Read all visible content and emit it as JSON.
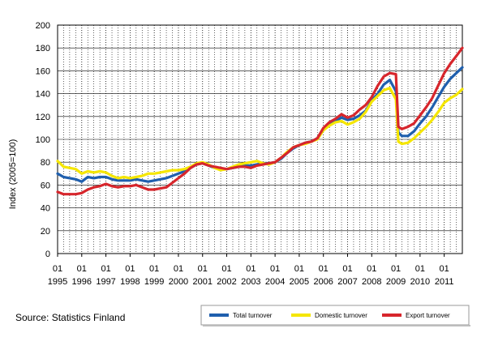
{
  "source_text": "Source: Statistics Finland",
  "chart_data": {
    "type": "line",
    "title": "",
    "ylabel": "Index (2005=100)",
    "xlabel": "",
    "ylim": [
      0,
      200
    ],
    "yticks": [
      0,
      20,
      40,
      60,
      80,
      100,
      120,
      140,
      160,
      180,
      200
    ],
    "xlim": [
      1995.0,
      2011.75
    ],
    "xtick_years": [
      "1995",
      "1996",
      "1997",
      "1998",
      "1999",
      "2000",
      "2001",
      "2002",
      "2003",
      "2004",
      "2005",
      "2006",
      "2007",
      "2008",
      "2009",
      "2010",
      "2011"
    ],
    "xtick_month": "01",
    "grid": true,
    "legend_position": "bottom-right",
    "series": [
      {
        "name": "Total turnover",
        "color": "#1f5fae",
        "points": [
          [
            1995.0,
            70
          ],
          [
            1995.25,
            67
          ],
          [
            1995.5,
            66
          ],
          [
            1995.75,
            65
          ],
          [
            1996.0,
            63
          ],
          [
            1996.25,
            67
          ],
          [
            1996.5,
            66
          ],
          [
            1996.75,
            67
          ],
          [
            1997.0,
            67
          ],
          [
            1997.25,
            65
          ],
          [
            1997.5,
            64
          ],
          [
            1997.75,
            64
          ],
          [
            1998.0,
            64
          ],
          [
            1998.25,
            65
          ],
          [
            1998.5,
            64
          ],
          [
            1998.75,
            63
          ],
          [
            1999.0,
            64
          ],
          [
            1999.25,
            65
          ],
          [
            1999.5,
            66
          ],
          [
            1999.75,
            68
          ],
          [
            2000.0,
            70
          ],
          [
            2000.25,
            72
          ],
          [
            2000.5,
            75
          ],
          [
            2000.75,
            78
          ],
          [
            2001.0,
            79
          ],
          [
            2001.25,
            77
          ],
          [
            2001.5,
            75
          ],
          [
            2001.75,
            74
          ],
          [
            2002.0,
            74
          ],
          [
            2002.25,
            75
          ],
          [
            2002.5,
            76
          ],
          [
            2002.75,
            77
          ],
          [
            2003.0,
            77
          ],
          [
            2003.25,
            78
          ],
          [
            2003.5,
            79
          ],
          [
            2003.75,
            79
          ],
          [
            2004.0,
            80
          ],
          [
            2004.25,
            83
          ],
          [
            2004.5,
            88
          ],
          [
            2004.75,
            92
          ],
          [
            2005.0,
            95
          ],
          [
            2005.25,
            97
          ],
          [
            2005.5,
            98
          ],
          [
            2005.75,
            101
          ],
          [
            2006.0,
            108
          ],
          [
            2006.25,
            113
          ],
          [
            2006.5,
            116
          ],
          [
            2006.75,
            119
          ],
          [
            2007.0,
            117
          ],
          [
            2007.25,
            118
          ],
          [
            2007.5,
            121
          ],
          [
            2007.75,
            125
          ],
          [
            2008.0,
            134
          ],
          [
            2008.25,
            140
          ],
          [
            2008.5,
            148
          ],
          [
            2008.75,
            152
          ],
          [
            2009.0,
            142
          ],
          [
            2009.1,
            106
          ],
          [
            2009.25,
            103
          ],
          [
            2009.5,
            103
          ],
          [
            2009.75,
            107
          ],
          [
            2010.0,
            114
          ],
          [
            2010.25,
            120
          ],
          [
            2010.5,
            128
          ],
          [
            2010.75,
            137
          ],
          [
            2011.0,
            146
          ],
          [
            2011.25,
            153
          ],
          [
            2011.5,
            158
          ],
          [
            2011.75,
            163
          ]
        ]
      },
      {
        "name": "Domestic turnover",
        "color": "#f5e600",
        "points": [
          [
            1995.0,
            81
          ],
          [
            1995.25,
            76
          ],
          [
            1995.5,
            75
          ],
          [
            1995.75,
            74
          ],
          [
            1996.0,
            70
          ],
          [
            1996.25,
            72
          ],
          [
            1996.5,
            71
          ],
          [
            1996.75,
            72
          ],
          [
            1997.0,
            71
          ],
          [
            1997.25,
            68
          ],
          [
            1997.5,
            66
          ],
          [
            1997.75,
            67
          ],
          [
            1998.0,
            66
          ],
          [
            1998.25,
            67
          ],
          [
            1998.5,
            68
          ],
          [
            1998.75,
            70
          ],
          [
            1999.0,
            70
          ],
          [
            1999.25,
            71
          ],
          [
            1999.5,
            72
          ],
          [
            1999.75,
            73
          ],
          [
            2000.0,
            73
          ],
          [
            2000.25,
            74
          ],
          [
            2000.5,
            76
          ],
          [
            2000.75,
            79
          ],
          [
            2001.0,
            80
          ],
          [
            2001.25,
            78
          ],
          [
            2001.5,
            75
          ],
          [
            2001.75,
            73
          ],
          [
            2002.0,
            74
          ],
          [
            2002.25,
            76
          ],
          [
            2002.5,
            78
          ],
          [
            2002.75,
            79
          ],
          [
            2003.0,
            80
          ],
          [
            2003.25,
            81
          ],
          [
            2003.5,
            79
          ],
          [
            2003.75,
            78
          ],
          [
            2004.0,
            80
          ],
          [
            2004.25,
            84
          ],
          [
            2004.5,
            89
          ],
          [
            2004.75,
            93
          ],
          [
            2005.0,
            95
          ],
          [
            2005.25,
            96
          ],
          [
            2005.5,
            98
          ],
          [
            2005.75,
            100
          ],
          [
            2006.0,
            108
          ],
          [
            2006.25,
            112
          ],
          [
            2006.5,
            115
          ],
          [
            2006.75,
            116
          ],
          [
            2007.0,
            113
          ],
          [
            2007.25,
            115
          ],
          [
            2007.5,
            118
          ],
          [
            2007.75,
            124
          ],
          [
            2008.0,
            133
          ],
          [
            2008.25,
            138
          ],
          [
            2008.5,
            143
          ],
          [
            2008.75,
            145
          ],
          [
            2009.0,
            135
          ],
          [
            2009.1,
            98
          ],
          [
            2009.25,
            96
          ],
          [
            2009.5,
            97
          ],
          [
            2009.75,
            101
          ],
          [
            2010.0,
            106
          ],
          [
            2010.25,
            111
          ],
          [
            2010.5,
            117
          ],
          [
            2010.75,
            124
          ],
          [
            2011.0,
            132
          ],
          [
            2011.25,
            136
          ],
          [
            2011.5,
            139
          ],
          [
            2011.75,
            144
          ]
        ]
      },
      {
        "name": "Export turnover",
        "color": "#d7262c",
        "points": [
          [
            1995.0,
            54
          ],
          [
            1995.25,
            52
          ],
          [
            1995.5,
            52
          ],
          [
            1995.75,
            52
          ],
          [
            1996.0,
            53
          ],
          [
            1996.25,
            56
          ],
          [
            1996.5,
            58
          ],
          [
            1996.75,
            59
          ],
          [
            1997.0,
            61
          ],
          [
            1997.25,
            59
          ],
          [
            1997.5,
            58
          ],
          [
            1997.75,
            59
          ],
          [
            1998.0,
            59
          ],
          [
            1998.25,
            60
          ],
          [
            1998.5,
            58
          ],
          [
            1998.75,
            56
          ],
          [
            1999.0,
            56
          ],
          [
            1999.25,
            57
          ],
          [
            1999.5,
            58
          ],
          [
            1999.75,
            62
          ],
          [
            2000.0,
            66
          ],
          [
            2000.25,
            70
          ],
          [
            2000.5,
            75
          ],
          [
            2000.75,
            78
          ],
          [
            2001.0,
            79
          ],
          [
            2001.25,
            77
          ],
          [
            2001.5,
            76
          ],
          [
            2001.75,
            75
          ],
          [
            2002.0,
            74
          ],
          [
            2002.25,
            75
          ],
          [
            2002.5,
            76
          ],
          [
            2002.75,
            76
          ],
          [
            2003.0,
            75
          ],
          [
            2003.25,
            77
          ],
          [
            2003.5,
            78
          ],
          [
            2003.75,
            79
          ],
          [
            2004.0,
            80
          ],
          [
            2004.25,
            84
          ],
          [
            2004.5,
            88
          ],
          [
            2004.75,
            93
          ],
          [
            2005.0,
            95
          ],
          [
            2005.25,
            97
          ],
          [
            2005.5,
            98
          ],
          [
            2005.75,
            101
          ],
          [
            2006.0,
            110
          ],
          [
            2006.25,
            115
          ],
          [
            2006.5,
            118
          ],
          [
            2006.75,
            122
          ],
          [
            2007.0,
            119
          ],
          [
            2007.25,
            121
          ],
          [
            2007.5,
            126
          ],
          [
            2007.75,
            130
          ],
          [
            2008.0,
            137
          ],
          [
            2008.25,
            147
          ],
          [
            2008.5,
            155
          ],
          [
            2008.75,
            158
          ],
          [
            2009.0,
            157
          ],
          [
            2009.1,
            111
          ],
          [
            2009.25,
            109
          ],
          [
            2009.5,
            111
          ],
          [
            2009.75,
            114
          ],
          [
            2010.0,
            121
          ],
          [
            2010.25,
            128
          ],
          [
            2010.5,
            136
          ],
          [
            2010.75,
            147
          ],
          [
            2011.0,
            158
          ],
          [
            2011.25,
            166
          ],
          [
            2011.5,
            173
          ],
          [
            2011.75,
            180
          ]
        ]
      }
    ]
  }
}
